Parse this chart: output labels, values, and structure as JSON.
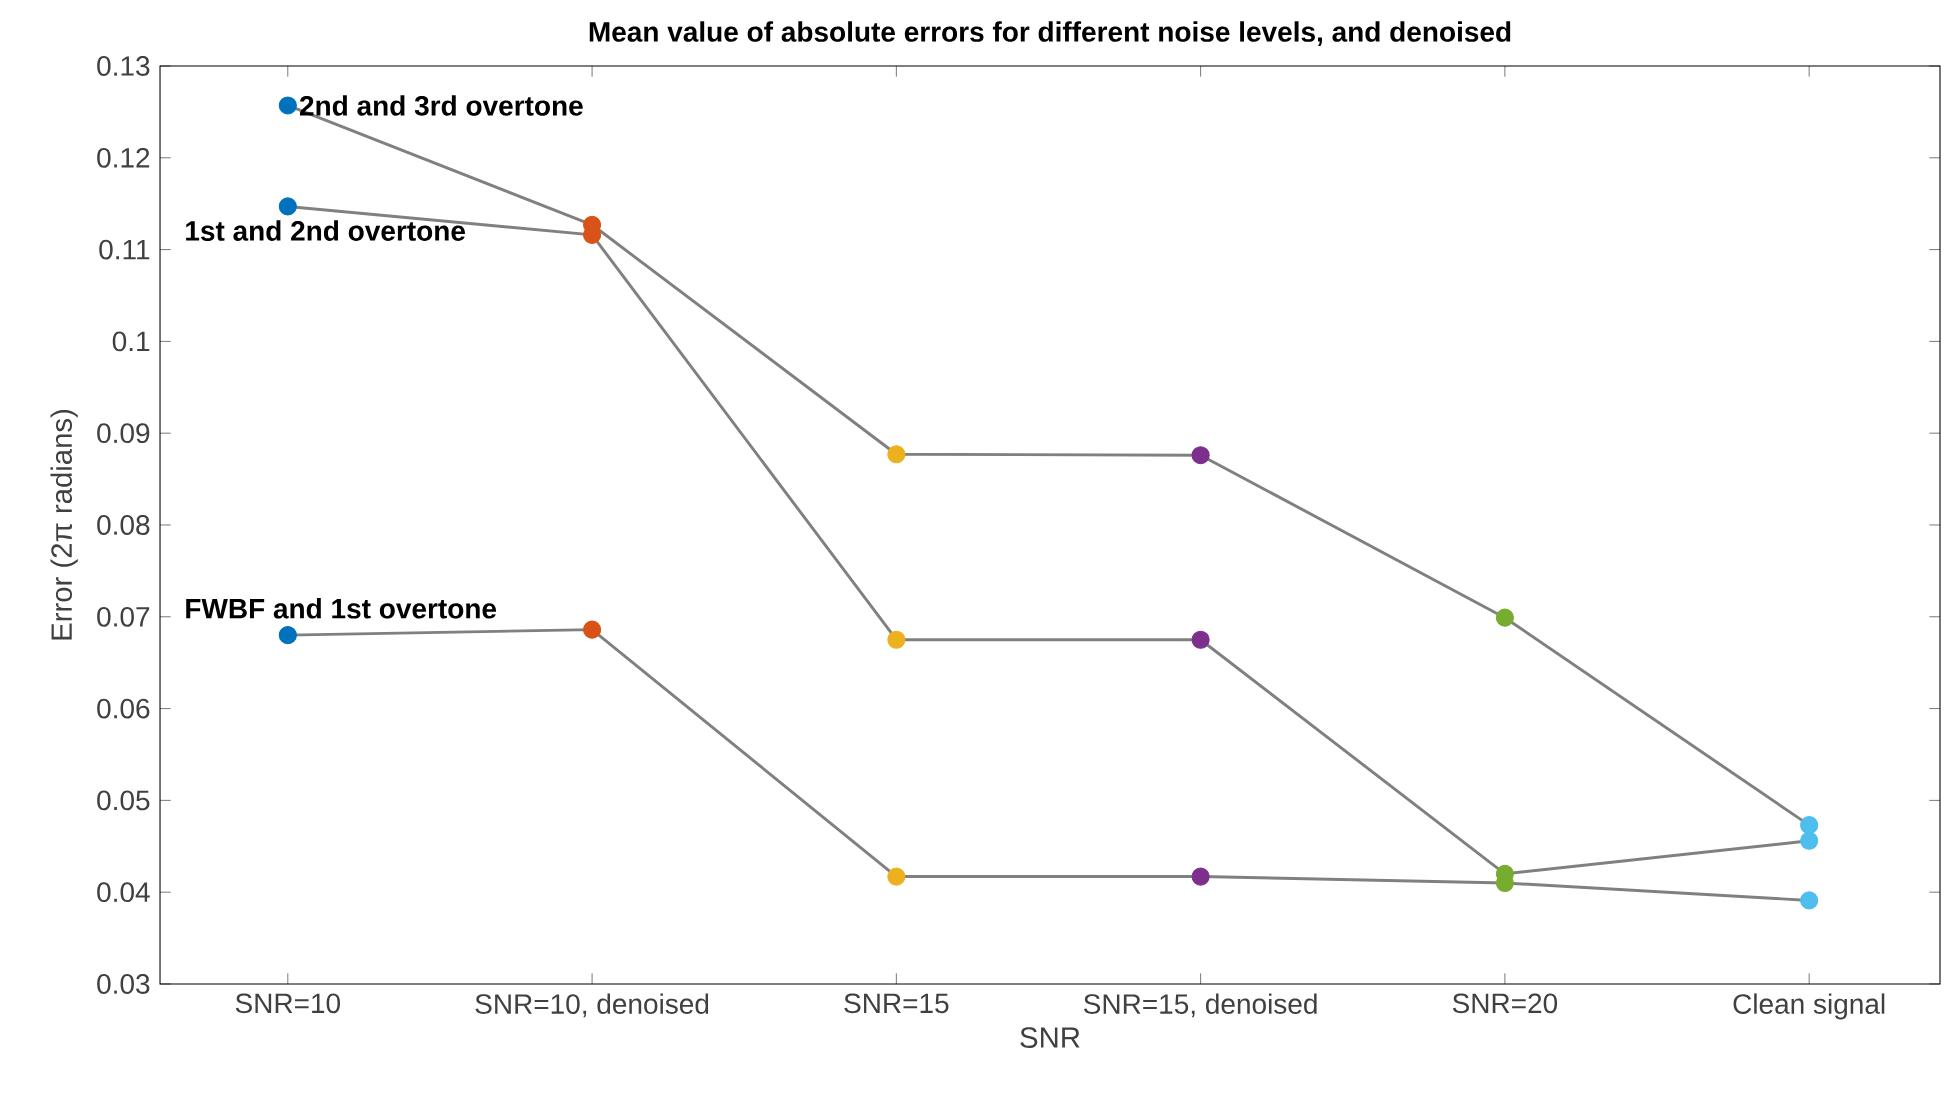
{
  "chart_data": {
    "type": "line",
    "title": "Mean value of absolute errors for different noise levels, and denoised",
    "xlabel": "SNR",
    "ylabel": "Error (2π radians)",
    "categories": [
      "SNR=10",
      "SNR=10, denoised",
      "SNR=15",
      "SNR=15, denoised",
      "SNR=20",
      "Clean signal"
    ],
    "series": [
      {
        "name": "2nd and 3rd overtone",
        "color": "#808080",
        "colors": [
          "#0072bd",
          "#d95319",
          "#edb120",
          "#7e2f8e",
          "#77ac30",
          "#4dbeee"
        ],
        "values": [
          0.1257,
          0.1127,
          0.0877,
          0.0876,
          0.0699,
          0.0473
        ]
      },
      {
        "name": "1st and 2nd overtone",
        "color": "#808080",
        "colors": [
          "#0072bd",
          "#d95319",
          "#edb120",
          "#7e2f8e",
          "#77ac30",
          "#4dbeee"
        ],
        "values": [
          0.1147,
          0.1116,
          0.0675,
          0.0675,
          0.042,
          0.0456
        ]
      },
      {
        "name": "FWBF and 1st overtone",
        "color": "#808080",
        "colors": [
          "#0072bd",
          "#d95319",
          "#edb120",
          "#7e2f8e",
          "#77ac30",
          "#4dbeee"
        ],
        "values": [
          0.068,
          0.0686,
          0.0417,
          0.0417,
          0.041,
          0.0391
        ]
      }
    ],
    "ylim": [
      0.03,
      0.13
    ],
    "yticks": [
      0.03,
      0.04,
      0.05,
      0.06,
      0.07,
      0.08,
      0.09,
      0.1,
      0.11,
      0.12,
      0.13
    ],
    "grid": false,
    "legend": false,
    "marker": "circle",
    "line_style": "solid"
  }
}
